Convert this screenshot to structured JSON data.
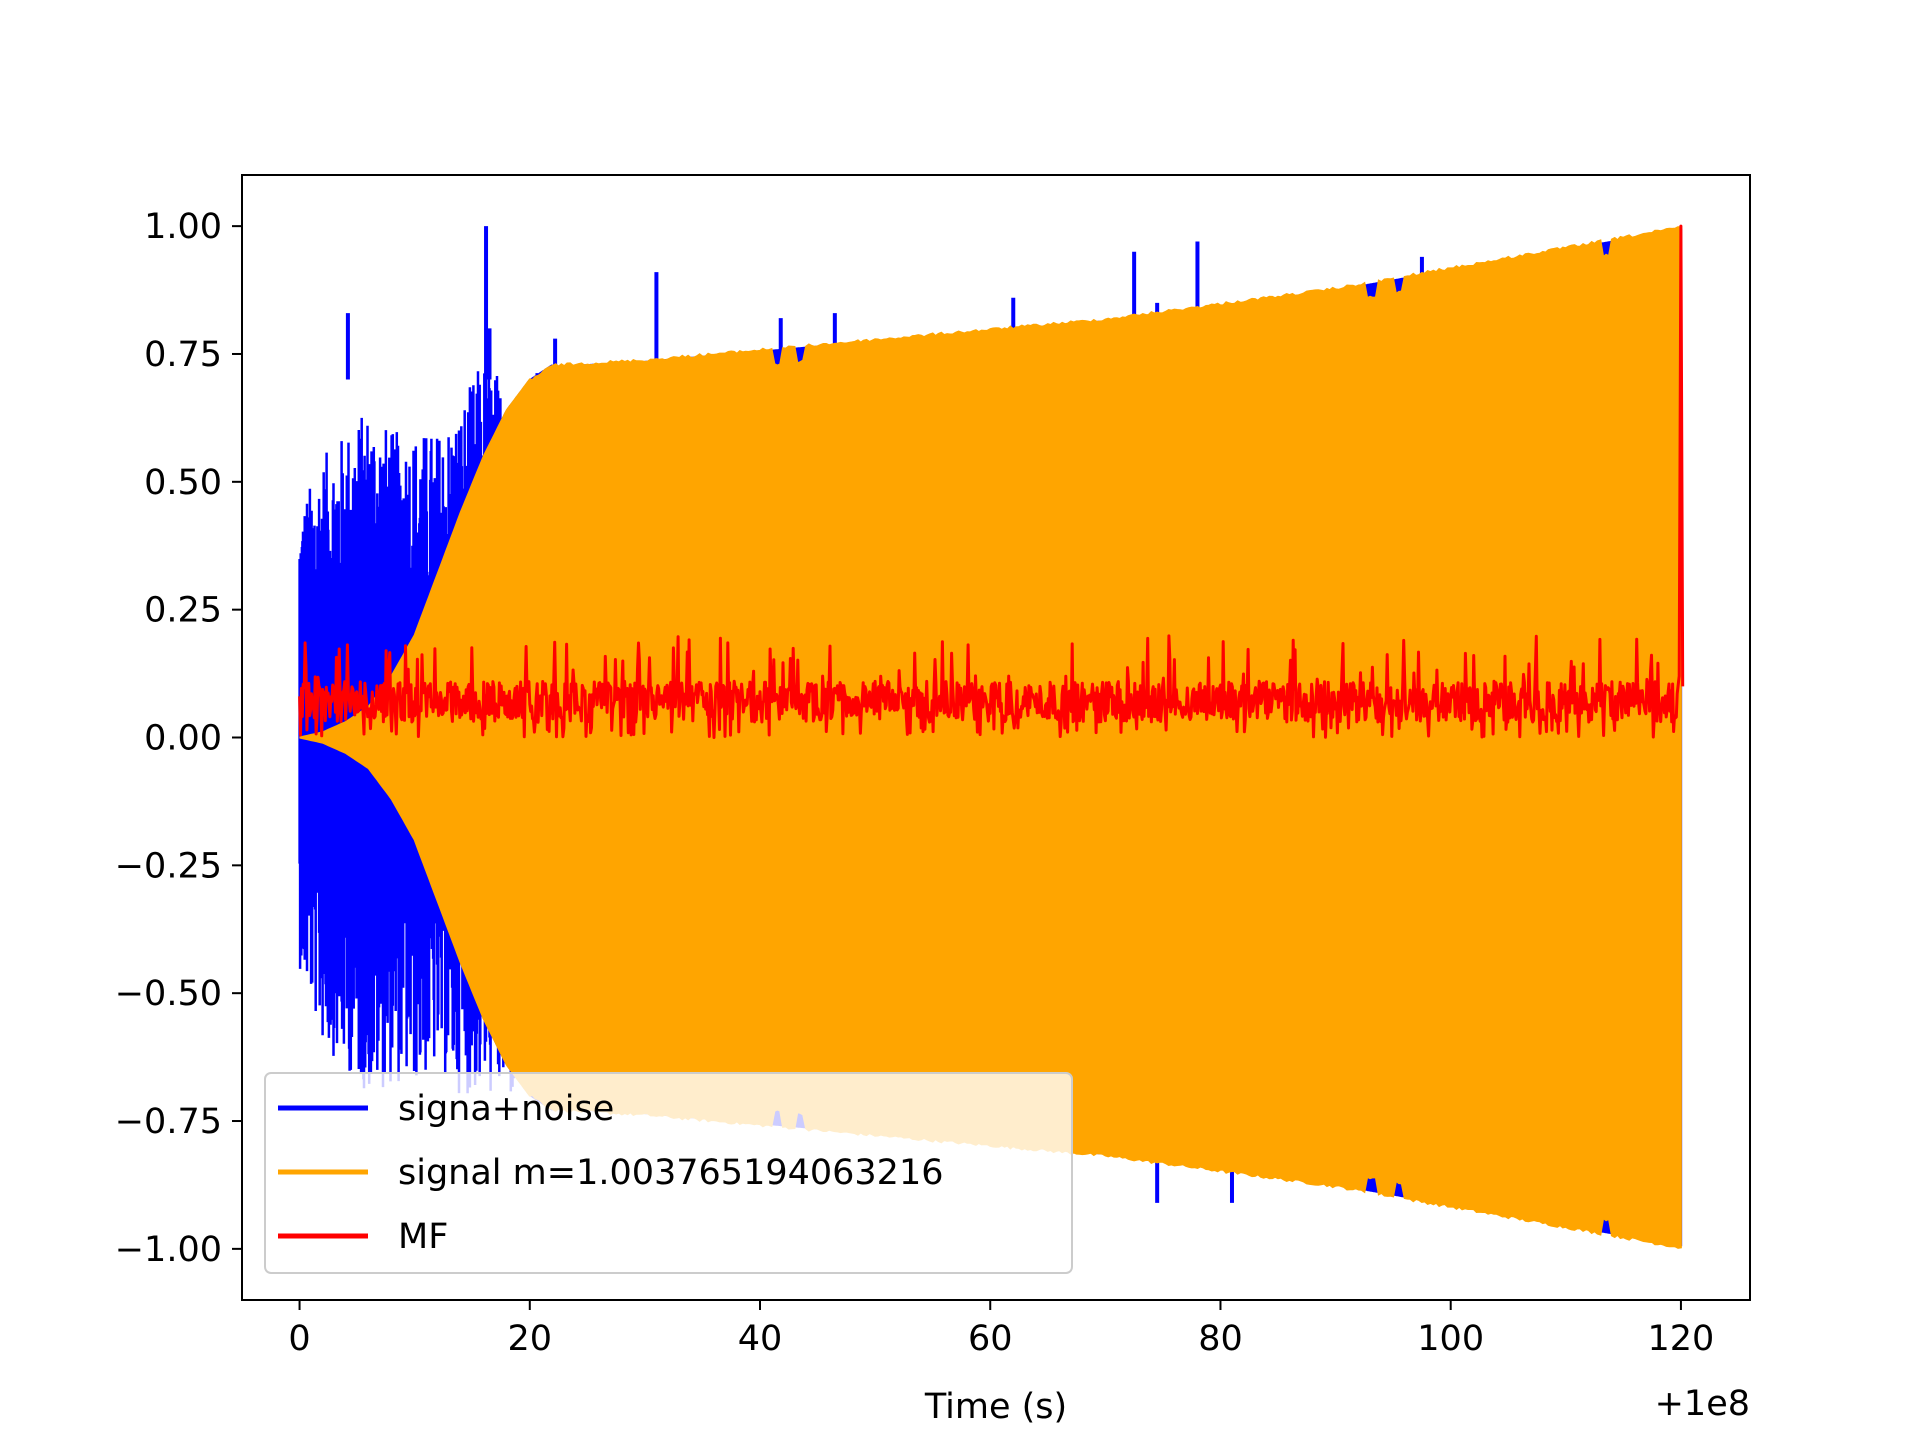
{
  "chart_data": {
    "type": "line",
    "title": "",
    "xlabel": "Time (s)",
    "ylabel": "",
    "x_offset_label": "+1e8",
    "xlim": [
      -5,
      126
    ],
    "ylim": [
      -1.1,
      1.1
    ],
    "x_ticks": [
      0,
      20,
      40,
      60,
      80,
      100,
      120
    ],
    "x_tick_labels": [
      "0",
      "20",
      "40",
      "60",
      "80",
      "100",
      "120"
    ],
    "y_ticks": [
      1.0,
      0.75,
      0.5,
      0.25,
      0.0,
      -0.25,
      -0.5,
      -0.75,
      -1.0
    ],
    "y_tick_labels": [
      "1.00",
      "0.75",
      "0.50",
      "0.25",
      "0.00",
      "−0.25",
      "−0.50",
      "−0.75",
      "−1.00"
    ],
    "grid": false,
    "legend_position": "lower-left",
    "series": [
      {
        "name": "signa+noise",
        "color": "#0000ff",
        "x_range": [
          0,
          120
        ],
        "envelope": {
          "x": [
            0,
            2,
            4,
            6,
            8,
            10,
            12,
            14,
            16,
            18,
            20,
            22
          ],
          "upper": [
            0.45,
            0.55,
            0.6,
            0.65,
            0.6,
            0.6,
            0.6,
            0.65,
            0.75,
            0.7,
            0.72,
            0.73
          ],
          "lower": [
            -0.45,
            -0.6,
            -0.65,
            -0.7,
            -0.68,
            -0.68,
            -0.65,
            -0.7,
            -0.7,
            -0.72,
            -0.73,
            -0.74
          ]
        },
        "spikes": [
          {
            "x": 4.2,
            "y": 0.83
          },
          {
            "x": 16.2,
            "y": 1.0
          },
          {
            "x": 16.5,
            "y": 0.8
          },
          {
            "x": 22.2,
            "y": 0.78
          },
          {
            "x": 31.0,
            "y": 0.91
          },
          {
            "x": 41.8,
            "y": 0.82
          },
          {
            "x": 46.5,
            "y": 0.83
          },
          {
            "x": 62.0,
            "y": 0.86
          },
          {
            "x": 72.5,
            "y": 0.95
          },
          {
            "x": 74.5,
            "y": 0.85
          },
          {
            "x": 78.0,
            "y": 0.97
          },
          {
            "x": 97.5,
            "y": 0.94
          },
          {
            "x": 74.5,
            "y": -0.91
          },
          {
            "x": 81.0,
            "y": -0.91
          }
        ]
      },
      {
        "name": "signal m=1.003765194063216",
        "color": "#ffa500",
        "amplitude_envelope": {
          "x": [
            0,
            2,
            4,
            6,
            8,
            10,
            12,
            14,
            16,
            18,
            20,
            22,
            30,
            40,
            50,
            60,
            70,
            80,
            90,
            100,
            110,
            120
          ],
          "amplitude": [
            0.0,
            0.01,
            0.03,
            0.06,
            0.12,
            0.2,
            0.32,
            0.44,
            0.55,
            0.64,
            0.7,
            0.73,
            0.74,
            0.76,
            0.78,
            0.8,
            0.82,
            0.85,
            0.88,
            0.92,
            0.96,
            1.0
          ]
        }
      },
      {
        "name": "MF",
        "color": "#ff0000",
        "baseline": 0.07,
        "noise_range": [
          0.0,
          0.2
        ],
        "peak": {
          "x": 120,
          "y": 1.0
        }
      }
    ]
  }
}
